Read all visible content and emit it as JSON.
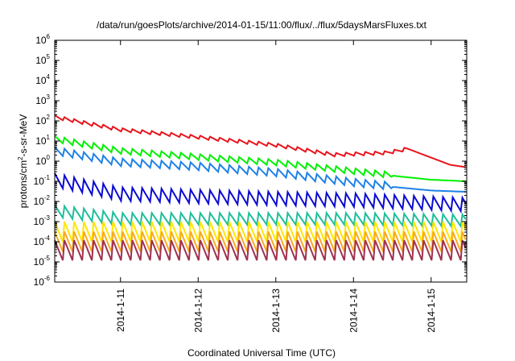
{
  "chart_data": {
    "type": "line",
    "title": "/data/run/goesPlots/archive/2014-01-15/11:00/flux/../flux/5daysMarsFluxes.txt",
    "xlabel": "Coordinated Universal Time (UTC)",
    "ylabel_parts": [
      "protons/cm",
      "2",
      "-s-sr-MeV"
    ],
    "y_scale": "log",
    "ylim": [
      1e-06,
      1000000.0
    ],
    "y_tick_exponents": [
      -6,
      -5,
      -4,
      -3,
      -2,
      -1,
      0,
      1,
      2,
      3,
      4,
      5,
      6
    ],
    "y_tick_base": "10",
    "xlim": [
      "2014-01-10 03:40",
      "2014-01-15 11:00"
    ],
    "x_ticks": [
      {
        "label": "2014-1-11",
        "t": "2014-01-11"
      },
      {
        "label": "2014-1-12",
        "t": "2014-01-12"
      },
      {
        "label": "2014-1-13",
        "t": "2014-01-13"
      },
      {
        "label": "2014-1-14",
        "t": "2014-01-14"
      },
      {
        "label": "2014-1-15",
        "t": "2014-01-15"
      }
    ],
    "grid": false,
    "legend": "none",
    "sawtooth_period_hours": 3,
    "series": [
      {
        "color": "#e8141c",
        "points": [
          [
            "2014-01-10 03:40",
            150
          ],
          [
            "2014-01-11 00:00",
            35
          ],
          [
            "2014-01-12 00:00",
            15
          ],
          [
            "2014-01-13 00:00",
            6
          ],
          [
            "2014-01-13 18:00",
            2
          ],
          [
            "2014-01-14 10:00",
            2.5
          ],
          [
            "2014-01-14 13:00",
            3
          ],
          [
            "2014-01-14 17:00",
            4
          ],
          [
            "2014-01-15 00:00",
            1.5
          ],
          [
            "2014-01-15 06:00",
            0.65
          ],
          [
            "2014-01-15 11:00",
            0.5
          ]
        ],
        "sawtooth_amplitude_decades": 0.2,
        "sawtooth_until": "2014-01-14 17:00"
      },
      {
        "color": "#00f000",
        "points": [
          [
            "2014-01-10 03:40",
            12
          ],
          [
            "2014-01-11 00:00",
            3
          ],
          [
            "2014-01-12 00:00",
            1.5
          ],
          [
            "2014-01-13 00:00",
            0.8
          ],
          [
            "2014-01-14 00:00",
            0.3
          ],
          [
            "2014-01-15 00:00",
            0.12
          ],
          [
            "2014-01-15 11:00",
            0.1
          ]
        ],
        "sawtooth_amplitude_decades": 0.35,
        "sawtooth_until": "2014-01-14 12:00"
      },
      {
        "color": "#1e82e6",
        "points": [
          [
            "2014-01-10 03:40",
            3
          ],
          [
            "2014-01-11 00:00",
            0.8
          ],
          [
            "2014-01-12 00:00",
            0.5
          ],
          [
            "2014-01-13 00:00",
            0.25
          ],
          [
            "2014-01-14 00:00",
            0.08
          ],
          [
            "2014-01-15 00:00",
            0.035
          ],
          [
            "2014-01-15 11:00",
            0.03
          ]
        ],
        "sawtooth_amplitude_decades": 0.45,
        "sawtooth_until": "2014-01-14 12:00"
      },
      {
        "color": "#0a0ad2",
        "points": [
          [
            "2014-01-10 03:40",
            0.1
          ],
          [
            "2014-01-11 00:00",
            0.02
          ],
          [
            "2014-01-12 00:00",
            0.015
          ],
          [
            "2014-01-13 00:00",
            0.012
          ],
          [
            "2014-01-14 00:00",
            0.01
          ],
          [
            "2014-01-15 11:00",
            0.006
          ]
        ],
        "sawtooth_amplitude_decades": 0.8,
        "sawtooth_until": "2014-01-15 11:00"
      },
      {
        "color": "#1ebe9b",
        "points": [
          [
            "2014-01-10 03:40",
            0.003
          ],
          [
            "2014-01-11 00:00",
            0.0012
          ],
          [
            "2014-01-12 00:00",
            0.0012
          ],
          [
            "2014-01-13 00:00",
            0.0012
          ],
          [
            "2014-01-14 00:00",
            0.0012
          ],
          [
            "2014-01-15 11:00",
            0.001
          ]
        ],
        "sawtooth_amplitude_decades": 0.7,
        "sawtooth_until": "2014-01-15 11:00"
      },
      {
        "color": "#ffe600",
        "points": [
          [
            "2014-01-10 03:40",
            0.00025
          ],
          [
            "2014-01-15 11:00",
            0.00025
          ]
        ],
        "sawtooth_amplitude_decades": 1.2,
        "sawtooth_until": "2014-01-15 11:00"
      },
      {
        "color": "#faaa1e",
        "points": [
          [
            "2014-01-10 03:40",
            8e-05
          ],
          [
            "2014-01-15 11:00",
            8e-05
          ]
        ],
        "sawtooth_amplitude_decades": 1.2,
        "sawtooth_until": "2014-01-15 11:00"
      },
      {
        "color": "#a03250",
        "points": [
          [
            "2014-01-10 03:40",
            3e-05
          ],
          [
            "2014-01-15 11:00",
            3e-05
          ]
        ],
        "sawtooth_amplitude_decades": 1.2,
        "sawtooth_until": "2014-01-15 11:00"
      }
    ]
  }
}
